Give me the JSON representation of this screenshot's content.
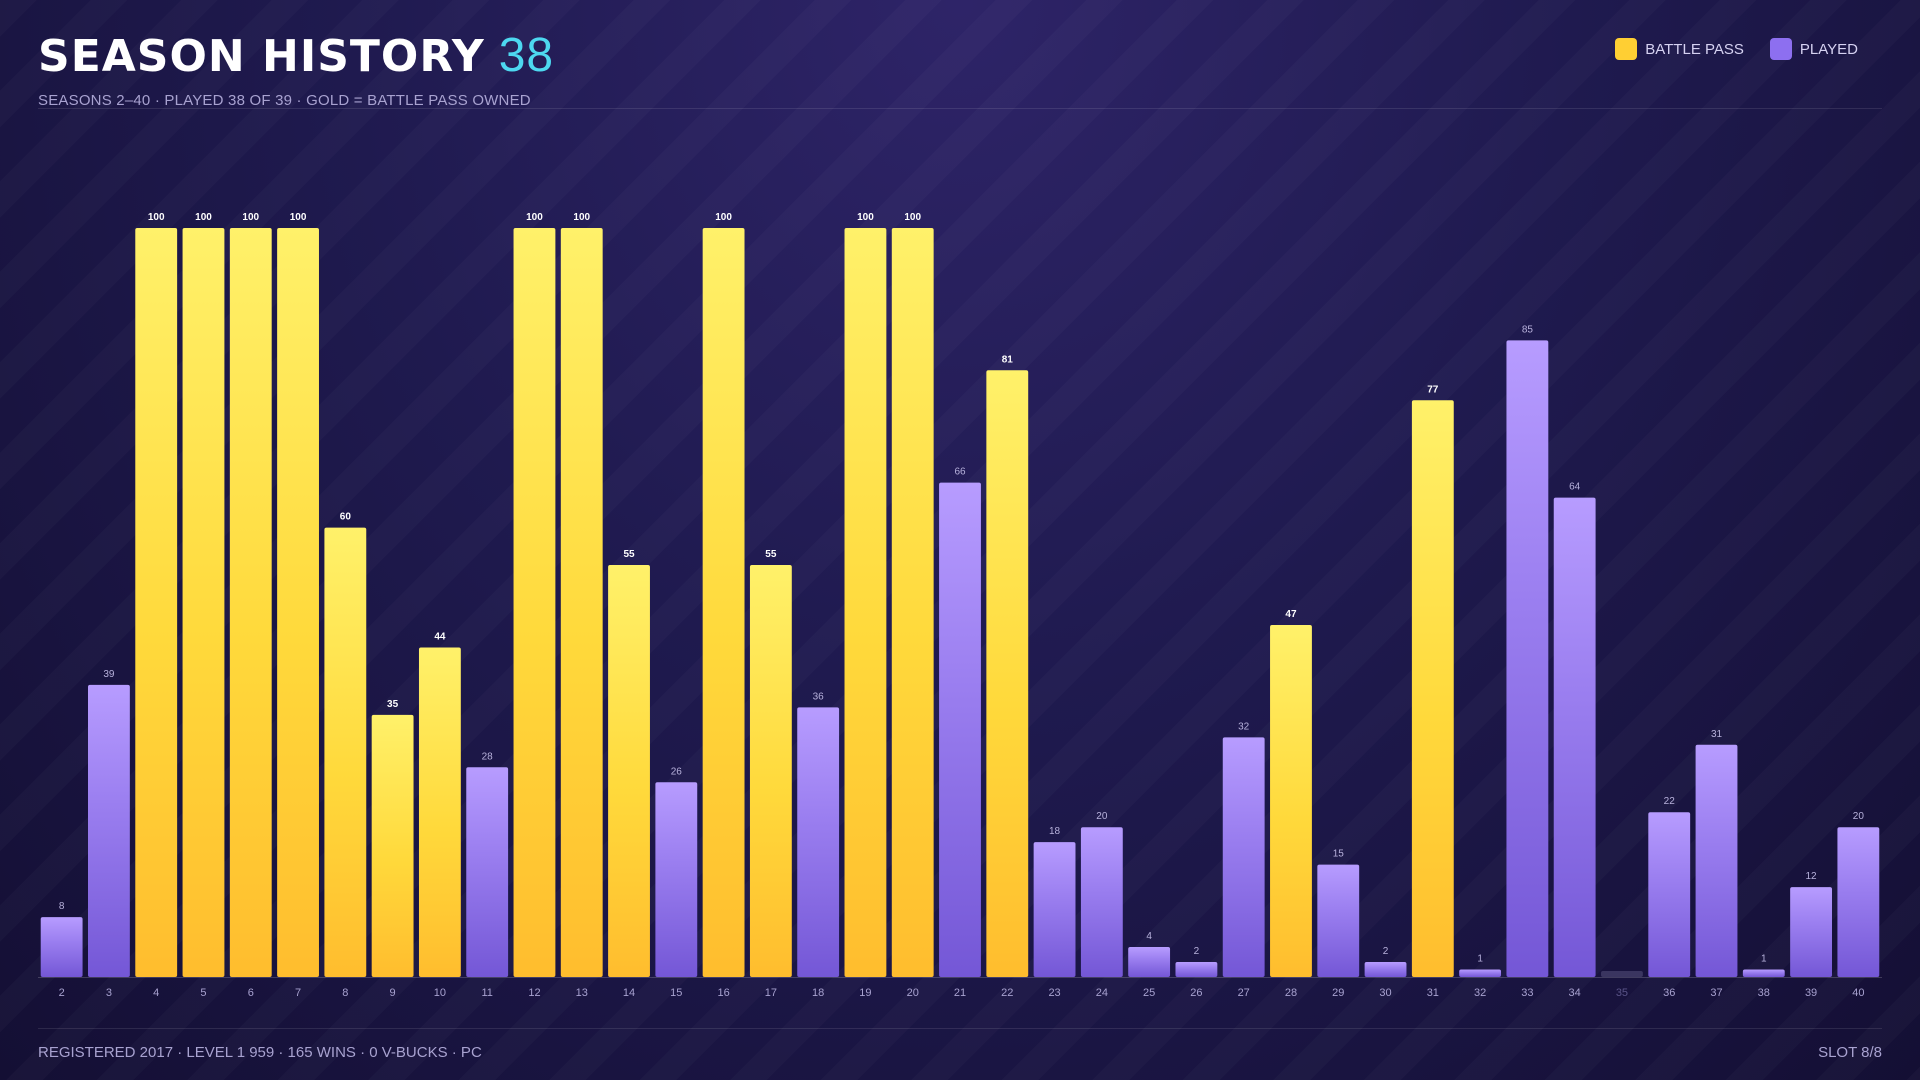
{
  "header": {
    "title": "SEASON HISTORY",
    "title_count": "38",
    "subtitle": "SEASONS 2–40  ·  PLAYED 38 OF 39  ·  GOLD = BATTLE PASS OWNED"
  },
  "legend": [
    {
      "label": "BATTLE PASS",
      "color": "#ffcf33"
    },
    {
      "label": "PLAYED",
      "color": "#8d6ff0"
    }
  ],
  "footer": {
    "left": "REGISTERED 2017  ·  LEVEL 1 959  ·  165 WINS  ·  0 V-BUCKS  ·  PC",
    "right": "SLOT 8/8"
  },
  "colors": {
    "battle_pass": "#ffcf33",
    "played": "#8d6ff0",
    "unplayed": "#3a3560",
    "accent": "#4dd8f0"
  },
  "chart_data": {
    "type": "bar",
    "ylim": [
      0,
      100
    ],
    "categories": [
      "2",
      "3",
      "4",
      "5",
      "6",
      "7",
      "8",
      "9",
      "10",
      "11",
      "12",
      "13",
      "14",
      "15",
      "16",
      "17",
      "18",
      "19",
      "20",
      "21",
      "22",
      "23",
      "24",
      "25",
      "26",
      "27",
      "28",
      "29",
      "30",
      "31",
      "32",
      "33",
      "34",
      "35",
      "36",
      "37",
      "38",
      "39",
      "40"
    ],
    "values": [
      8,
      39,
      100,
      100,
      100,
      100,
      60,
      35,
      44,
      28,
      100,
      100,
      55,
      26,
      100,
      55,
      36,
      100,
      100,
      66,
      81,
      18,
      20,
      4,
      2,
      32,
      47,
      15,
      2,
      77,
      1,
      85,
      64,
      0,
      22,
      31,
      1,
      12,
      20
    ],
    "battle_pass": [
      false,
      false,
      true,
      true,
      true,
      true,
      true,
      true,
      true,
      false,
      true,
      true,
      true,
      false,
      true,
      true,
      false,
      true,
      true,
      false,
      true,
      false,
      false,
      false,
      false,
      false,
      true,
      false,
      false,
      true,
      false,
      false,
      false,
      false,
      false,
      false,
      false,
      false,
      false
    ],
    "played": [
      true,
      true,
      true,
      true,
      true,
      true,
      true,
      true,
      true,
      true,
      true,
      true,
      true,
      true,
      true,
      true,
      true,
      true,
      true,
      true,
      true,
      true,
      true,
      true,
      true,
      true,
      true,
      true,
      true,
      true,
      true,
      true,
      true,
      false,
      true,
      true,
      true,
      true,
      true
    ]
  }
}
